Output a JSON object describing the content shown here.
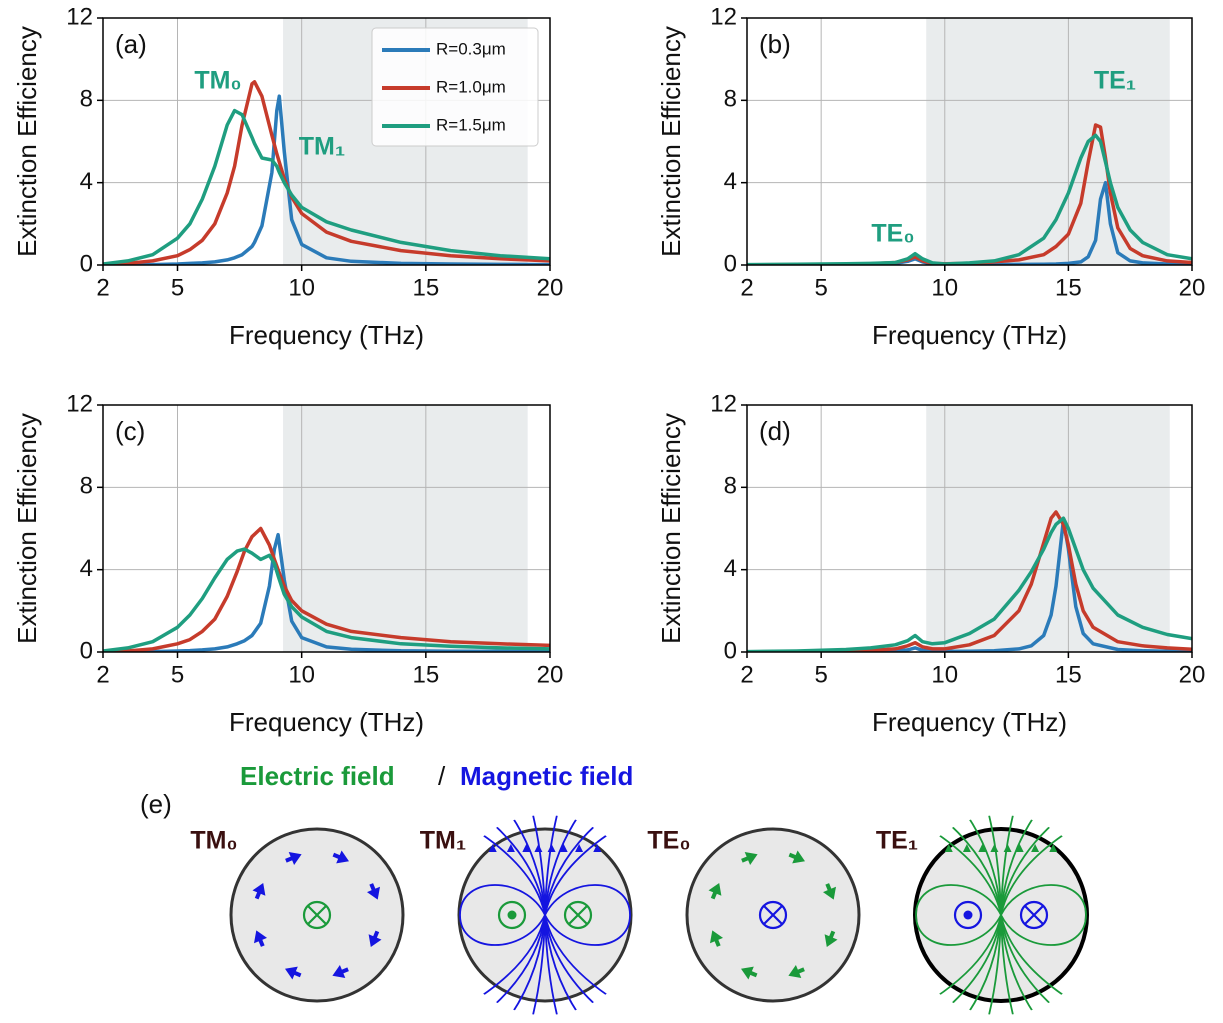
{
  "chart_data": [
    {
      "type": "line",
      "panel_label": "(a)",
      "xlabel": "Frequency (THz)",
      "ylabel": "Extinction Efficiency",
      "xlim": [
        2,
        20
      ],
      "xticks": [
        2,
        5,
        10,
        15,
        20
      ],
      "ylim": [
        0,
        12
      ],
      "yticks": [
        0,
        4,
        8,
        12
      ],
      "grid": true,
      "shaded_span": [
        9.25,
        19.1
      ],
      "legend": "upper right",
      "annotations": [
        "TM₀",
        "TM₁"
      ],
      "x": [
        2,
        3,
        4,
        5,
        5.5,
        6,
        6.5,
        7,
        7.3,
        7.6,
        8,
        8.1,
        8.4,
        8.8,
        9,
        9.1,
        9.3,
        9.6,
        10,
        11,
        12,
        14,
        16,
        18,
        20
      ],
      "series": [
        {
          "name": "R=0.3μm",
          "color": "#2b7bb9",
          "values": [
            0,
            0,
            0.02,
            0.05,
            0.08,
            0.1,
            0.15,
            0.25,
            0.35,
            0.5,
            0.9,
            1.1,
            1.9,
            4.5,
            7.5,
            8.2,
            5.5,
            2.2,
            1.0,
            0.35,
            0.18,
            0.08,
            0.05,
            0.03,
            0.02
          ]
        },
        {
          "name": "R=1.0μm",
          "color": "#c63b2b",
          "values": [
            0.02,
            0.08,
            0.2,
            0.45,
            0.75,
            1.2,
            2.0,
            3.5,
            4.8,
            6.8,
            8.8,
            8.9,
            8.2,
            6.3,
            5.4,
            5.0,
            4.2,
            3.3,
            2.5,
            1.6,
            1.15,
            0.7,
            0.45,
            0.3,
            0.2
          ]
        },
        {
          "name": "R=1.5μm",
          "color": "#1f9e80",
          "values": [
            0.05,
            0.2,
            0.5,
            1.3,
            2.0,
            3.2,
            4.8,
            6.8,
            7.5,
            7.3,
            6.2,
            5.9,
            5.2,
            5.1,
            4.8,
            4.5,
            4.0,
            3.4,
            2.8,
            2.1,
            1.7,
            1.1,
            0.7,
            0.45,
            0.3
          ]
        }
      ]
    },
    {
      "type": "line",
      "panel_label": "(b)",
      "xlabel": "Frequency (THz)",
      "ylabel": "Extinction Efficiency",
      "xlim": [
        2,
        20
      ],
      "xticks": [
        2,
        5,
        10,
        15,
        20
      ],
      "ylim": [
        0,
        12
      ],
      "yticks": [
        0,
        4,
        8,
        12
      ],
      "grid": true,
      "shaded_span": [
        9.25,
        19.1
      ],
      "annotations": [
        "TE₁",
        "TE₀"
      ],
      "x": [
        2,
        4,
        6,
        7,
        8,
        8.5,
        8.8,
        9.1,
        9.5,
        10,
        11,
        12,
        13,
        14,
        14.5,
        15,
        15.5,
        15.8,
        16.1,
        16.3,
        16.5,
        16.7,
        17,
        17.5,
        18,
        19,
        20
      ],
      "series": [
        {
          "color": "#2b7bb9",
          "values": [
            0,
            0.01,
            0.02,
            0.03,
            0.08,
            0.18,
            0.3,
            0.15,
            0.05,
            0.03,
            0.02,
            0.02,
            0.03,
            0.04,
            0.05,
            0.08,
            0.15,
            0.4,
            1.2,
            3.2,
            4.0,
            2.0,
            0.6,
            0.2,
            0.1,
            0.05,
            0.03
          ]
        },
        {
          "color": "#c63b2b",
          "values": [
            0.01,
            0.02,
            0.04,
            0.06,
            0.12,
            0.25,
            0.4,
            0.2,
            0.08,
            0.06,
            0.08,
            0.15,
            0.25,
            0.5,
            0.9,
            1.5,
            3.0,
            5.0,
            6.8,
            6.7,
            5.2,
            3.5,
            1.8,
            0.8,
            0.45,
            0.2,
            0.12
          ]
        },
        {
          "color": "#1f9e80",
          "values": [
            0.02,
            0.04,
            0.06,
            0.08,
            0.12,
            0.3,
            0.55,
            0.3,
            0.1,
            0.05,
            0.1,
            0.2,
            0.5,
            1.3,
            2.2,
            3.5,
            5.2,
            6.0,
            6.3,
            6.0,
            5.0,
            4.0,
            2.8,
            1.7,
            1.1,
            0.5,
            0.3
          ]
        }
      ]
    },
    {
      "type": "line",
      "panel_label": "(c)",
      "xlabel": "Frequency (THz)",
      "ylabel": "Extinction Efficiency",
      "xlim": [
        2,
        20
      ],
      "xticks": [
        2,
        5,
        10,
        15,
        20
      ],
      "ylim": [
        0,
        12
      ],
      "yticks": [
        0,
        4,
        8,
        12
      ],
      "grid": true,
      "shaded_span": [
        9.25,
        19.1
      ],
      "x": [
        2,
        3,
        4,
        5,
        5.5,
        6,
        6.5,
        7,
        7.4,
        7.7,
        8,
        8.35,
        8.7,
        8.9,
        9.05,
        9.3,
        9.6,
        10,
        11,
        12,
        14,
        16,
        18,
        20
      ],
      "series": [
        {
          "color": "#2b7bb9",
          "values": [
            0,
            0,
            0.02,
            0.05,
            0.07,
            0.1,
            0.15,
            0.25,
            0.4,
            0.55,
            0.8,
            1.4,
            3.2,
            5.0,
            5.7,
            3.5,
            1.5,
            0.7,
            0.25,
            0.13,
            0.06,
            0.04,
            0.03,
            0.02
          ]
        },
        {
          "color": "#c63b2b",
          "values": [
            0.02,
            0.05,
            0.15,
            0.4,
            0.6,
            1.0,
            1.6,
            2.7,
            3.9,
            4.9,
            5.6,
            6.0,
            5.2,
            4.5,
            4.0,
            3.2,
            2.5,
            2.0,
            1.35,
            1.0,
            0.7,
            0.5,
            0.4,
            0.32
          ]
        },
        {
          "color": "#1f9e80",
          "values": [
            0.05,
            0.2,
            0.5,
            1.2,
            1.8,
            2.6,
            3.6,
            4.5,
            4.9,
            5.0,
            4.8,
            4.5,
            4.7,
            4.3,
            3.7,
            2.8,
            2.2,
            1.7,
            1.0,
            0.7,
            0.4,
            0.28,
            0.2,
            0.15
          ]
        }
      ]
    },
    {
      "type": "line",
      "panel_label": "(d)",
      "xlabel": "Frequency (THz)",
      "ylabel": "Extinction Efficiency",
      "xlim": [
        2,
        20
      ],
      "xticks": [
        2,
        5,
        10,
        15,
        20
      ],
      "ylim": [
        0,
        12
      ],
      "yticks": [
        0,
        4,
        8,
        12
      ],
      "grid": true,
      "shaded_span": [
        9.25,
        19.1
      ],
      "x": [
        2,
        4,
        6,
        7,
        8,
        8.5,
        8.8,
        9.1,
        9.5,
        10,
        11,
        12,
        13,
        13.5,
        14,
        14.3,
        14.5,
        14.8,
        15,
        15.3,
        15.6,
        16,
        17,
        18,
        19,
        20
      ],
      "series": [
        {
          "color": "#2b7bb9",
          "values": [
            0,
            0.01,
            0.02,
            0.02,
            0.04,
            0.1,
            0.2,
            0.08,
            0.04,
            0.03,
            0.04,
            0.06,
            0.15,
            0.3,
            0.8,
            1.8,
            3.2,
            6.4,
            5.0,
            2.2,
            0.9,
            0.4,
            0.12,
            0.06,
            0.04,
            0.03
          ]
        },
        {
          "color": "#c63b2b",
          "values": [
            0.01,
            0.02,
            0.05,
            0.08,
            0.15,
            0.3,
            0.45,
            0.25,
            0.15,
            0.15,
            0.35,
            0.8,
            2.0,
            3.3,
            5.3,
            6.5,
            6.8,
            6.2,
            5.2,
            3.3,
            2.0,
            1.2,
            0.5,
            0.3,
            0.2,
            0.13
          ]
        },
        {
          "color": "#1f9e80",
          "values": [
            0.02,
            0.05,
            0.12,
            0.2,
            0.35,
            0.55,
            0.8,
            0.5,
            0.4,
            0.45,
            0.9,
            1.6,
            3.0,
            3.9,
            5.0,
            5.8,
            6.2,
            6.5,
            6.0,
            5.0,
            4.0,
            3.1,
            1.8,
            1.2,
            0.85,
            0.65
          ]
        }
      ]
    }
  ],
  "diagram": {
    "panel_label": "(e)",
    "electric": "Electric field",
    "separator": "/",
    "magnetic": "Magnetic field",
    "modes": [
      "TM₀",
      "TM₁",
      "TE₀",
      "TE₁"
    ]
  }
}
